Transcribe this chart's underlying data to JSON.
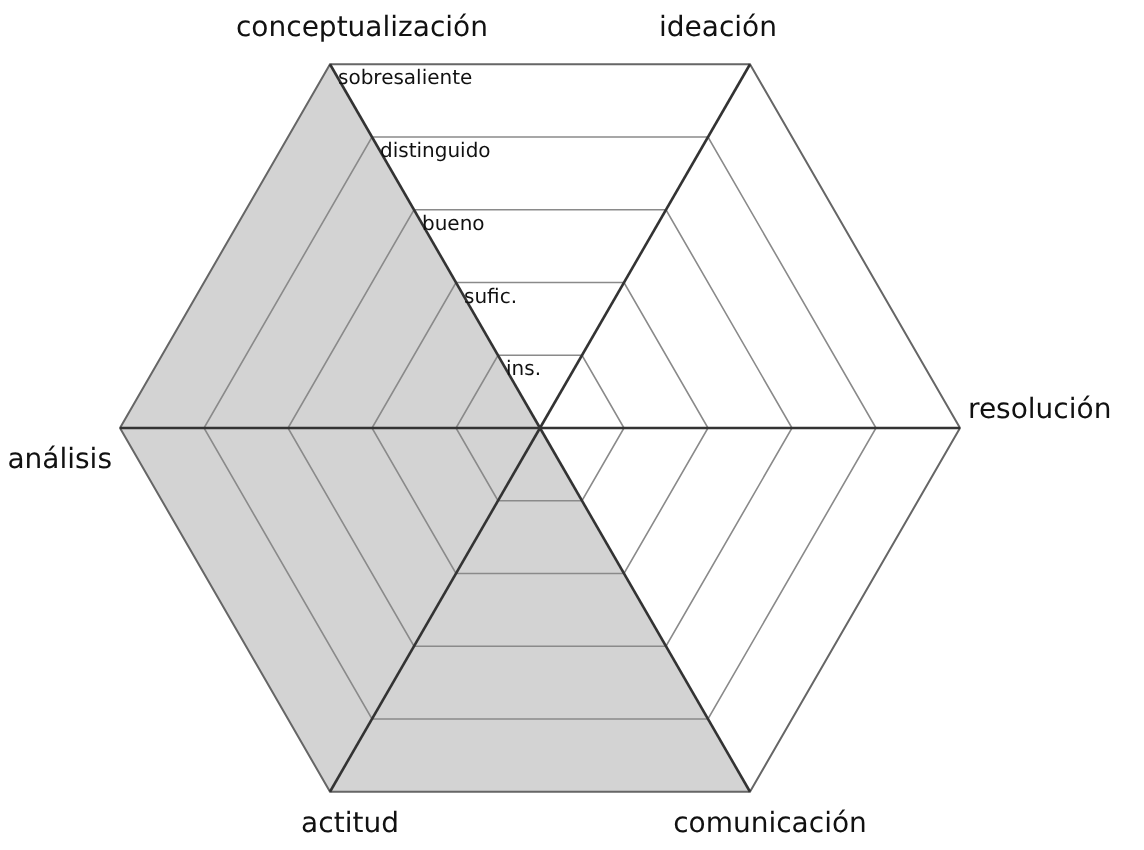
{
  "chart_data": {
    "type": "radar",
    "categories": [
      "conceptualización",
      "ideación",
      "resolución",
      "comunicación",
      "actitud",
      "análisis"
    ],
    "series": [
      {
        "color": "#d3d3d3",
        "values": [
          5,
          0,
          0,
          5,
          5,
          5
        ]
      }
    ],
    "ylim": [
      0,
      5
    ],
    "yticks": [
      {
        "value": 1,
        "label": "ins."
      },
      {
        "value": 2,
        "label": "sufic."
      },
      {
        "value": 3,
        "label": "bueno"
      },
      {
        "value": 4,
        "label": "distinguido"
      },
      {
        "value": 5,
        "label": "sobresaliente"
      }
    ],
    "grid": true
  }
}
